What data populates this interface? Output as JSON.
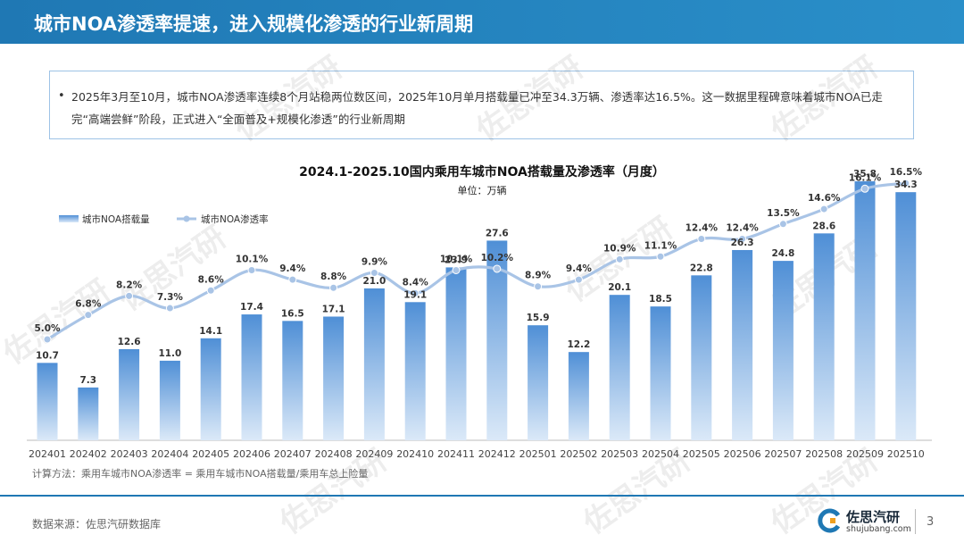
{
  "header": {
    "title": "城市NOA渗透率提速，进入规模化渗透的行业新周期"
  },
  "summary": {
    "bullet": "•",
    "text": "2025年3月至10月，城市NOA渗透率连续8个月站稳两位数区间，2025年10月单月搭载量已冲至34.3万辆、渗透率达16.5%。这一数据里程碑意味着城市NOA已走完“高端尝鲜”阶段，正式进入“全面普及+规模化渗透”的行业新周期"
  },
  "chart_data": {
    "type": "bar",
    "title": "2024.1-2025.10国内乘用车城市NOA搭载量及渗透率（月度）",
    "unit": "单位：万辆",
    "categories": [
      "202401",
      "202402",
      "202403",
      "202404",
      "202405",
      "202406",
      "202407",
      "202408",
      "202409",
      "202410",
      "202411",
      "202412",
      "202501",
      "202502",
      "202503",
      "202504",
      "202505",
      "202506",
      "202507",
      "202508",
      "202509",
      "202510"
    ],
    "series": [
      {
        "name": "城市NOA搭载量",
        "kind": "bar",
        "values": [
          10.7,
          7.3,
          12.6,
          11.0,
          14.1,
          17.4,
          16.5,
          17.1,
          21.0,
          19.1,
          23.9,
          27.6,
          15.9,
          12.2,
          20.1,
          18.5,
          22.8,
          26.3,
          24.8,
          28.6,
          35.8,
          34.3
        ],
        "labels": [
          "10.7",
          "7.3",
          "12.6",
          "11.0",
          "14.1",
          "17.4",
          "16.5",
          "17.1",
          "21.0",
          "19.1",
          "23.9",
          "27.6",
          "15.9",
          "12.2",
          "20.1",
          "18.5",
          "22.8",
          "26.3",
          "24.8",
          "28.6",
          "35.8",
          "34.3"
        ]
      },
      {
        "name": "城市NOA渗透率",
        "kind": "line",
        "values": [
          5.0,
          6.8,
          8.2,
          7.3,
          8.6,
          10.1,
          9.4,
          8.8,
          9.9,
          8.4,
          10.1,
          10.2,
          8.9,
          9.4,
          10.9,
          11.1,
          12.4,
          12.4,
          13.5,
          14.6,
          16.1,
          16.5
        ],
        "labels": [
          "5.0%",
          "6.8%",
          "8.2%",
          "7.3%",
          "8.6%",
          "10.1%",
          "9.4%",
          "8.8%",
          "9.9%",
          "8.4%",
          "10.1%",
          "10.2%",
          "8.9%",
          "9.4%",
          "10.9%",
          "11.1%",
          "12.4%",
          "12.4%",
          "13.5%",
          "14.6%",
          "16.1%",
          "16.5%"
        ]
      }
    ],
    "legend_position": "top-left",
    "grid": false,
    "colors": {
      "bar_top": "#4f8fd6",
      "bar_bottom": "#d9e8f7",
      "line": "#a9c4e6",
      "marker": "#a9c4e6"
    }
  },
  "note": "计算方法：乘用车城市NOA渗透率 = 乘用车城市NOA搭载量/乘用车总上险量",
  "footer": {
    "source": "数据来源：佐思汽研数据库",
    "logo_name": "佐思汽研",
    "logo_url": "shujubang.com",
    "page_number": "3"
  },
  "watermark": "佐思汽研",
  "colors": {
    "brand": "#1f78b4",
    "box_border": "#9ec3e6"
  }
}
